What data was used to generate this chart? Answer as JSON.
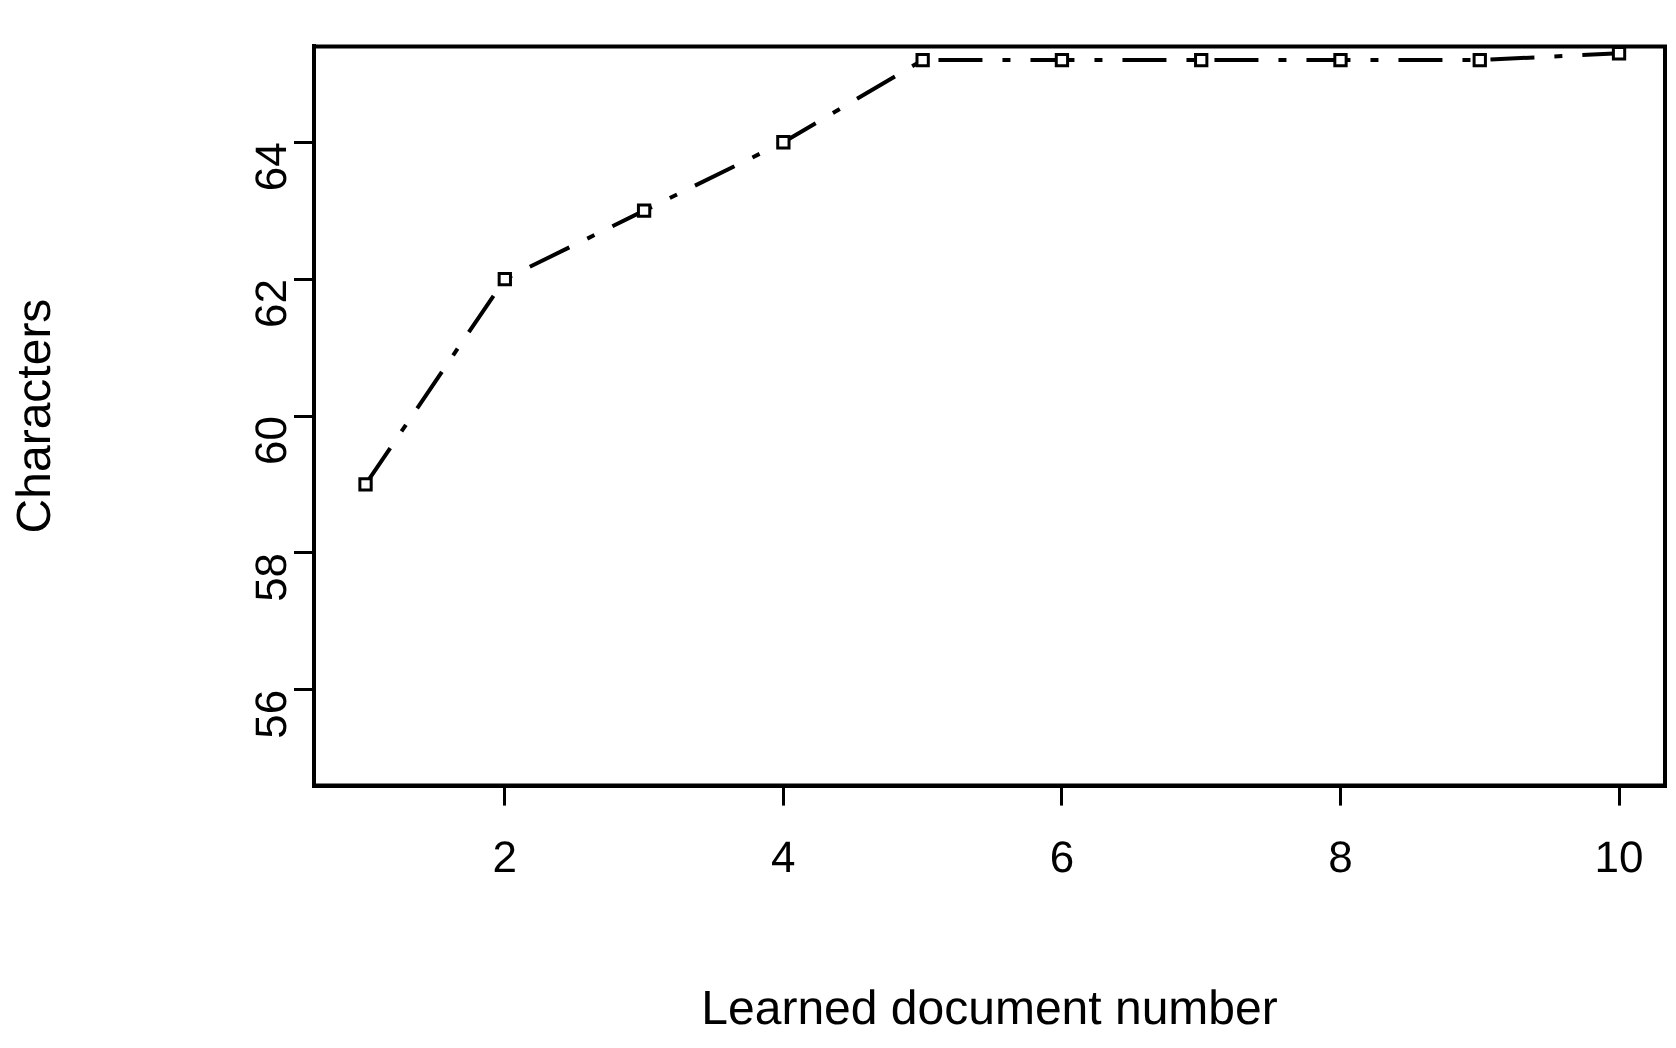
{
  "chart_data": {
    "type": "line",
    "xlabel": "Learned document number",
    "ylabel": "Characters",
    "x": [
      1,
      2,
      3,
      4,
      5,
      6,
      7,
      8,
      9,
      10
    ],
    "series": [
      {
        "color": "#000000",
        "values": [
          59,
          62,
          63,
          64,
          65.2,
          65.2,
          65.2,
          65.2,
          65.2,
          65.3
        ]
      }
    ],
    "xlim": [
      0.63,
      10.33
    ],
    "xticks": [
      2,
      4,
      6,
      8,
      10
    ],
    "ylim": [
      54.6,
      65.4
    ],
    "yticks": [
      56,
      58,
      60,
      62,
      64
    ],
    "grid": false,
    "legend": false,
    "marker": "square",
    "line_style": "dashed"
  }
}
